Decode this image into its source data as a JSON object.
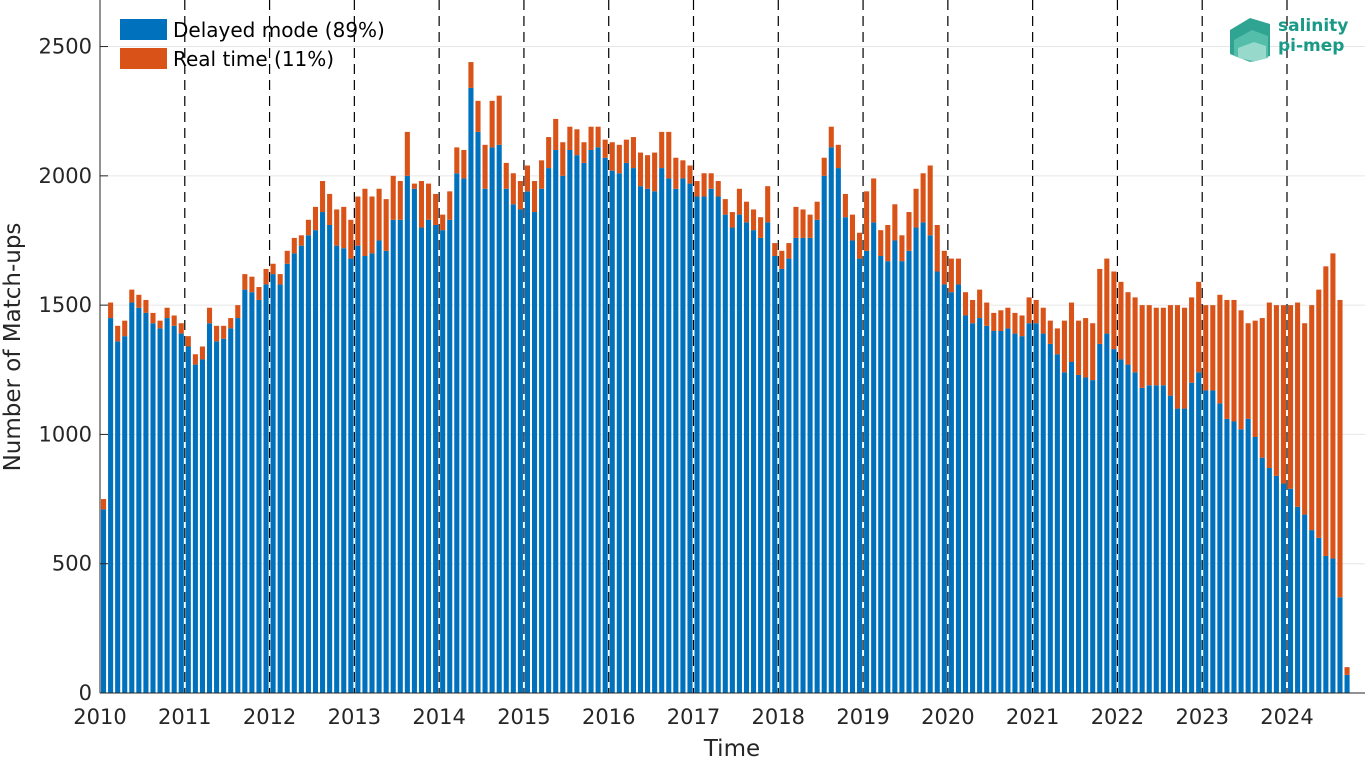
{
  "chart_data": {
    "type": "bar",
    "stacked": true,
    "xlabel": "Time",
    "ylabel": "Number of Match-ups",
    "ylim": [
      0,
      2680
    ],
    "xlim": [
      2010.0,
      2024.92
    ],
    "y_ticks": [
      "0",
      "500",
      "1000",
      "1500",
      "2000",
      "2500"
    ],
    "x_ticks": [
      "2010",
      "2011",
      "2012",
      "2013",
      "2014",
      "2015",
      "2016",
      "2017",
      "2018",
      "2019",
      "2020",
      "2021",
      "2022",
      "2023",
      "2024"
    ],
    "year_dividers": true,
    "grid": "horizontal",
    "legend_position": "top-left",
    "start_month": "2010-01",
    "end_month": "2024-11",
    "colors": {
      "delayed": "#0072BD",
      "realtime": "#D95319",
      "divider": "#000000",
      "logo": "#1a9a86"
    },
    "series": [
      {
        "name": "Delayed mode (89%)",
        "values": [
          710,
          1450,
          1360,
          1380,
          1510,
          1490,
          1470,
          1430,
          1410,
          1450,
          1420,
          1390,
          1340,
          1270,
          1290,
          1430,
          1360,
          1370,
          1410,
          1450,
          1560,
          1550,
          1520,
          1580,
          1620,
          1580,
          1660,
          1700,
          1730,
          1770,
          1790,
          1860,
          1810,
          1730,
          1720,
          1680,
          1730,
          1690,
          1700,
          1750,
          1710,
          1830,
          1830,
          2000,
          1950,
          1800,
          1830,
          1810,
          1790,
          1830,
          2010,
          1990,
          2340,
          2170,
          1950,
          2110,
          2120,
          1950,
          1890,
          1870,
          1940,
          1860,
          1950,
          2030,
          2100,
          2000,
          2100,
          2080,
          2050,
          2100,
          2110,
          2070,
          2020,
          2010,
          2050,
          2030,
          1960,
          1950,
          1940,
          2030,
          1990,
          1950,
          1990,
          1970,
          1920,
          1920,
          1950,
          1920,
          1850,
          1800,
          1850,
          1820,
          1790,
          1760,
          1820,
          1690,
          1640,
          1680,
          1760,
          1760,
          1760,
          1830,
          2000,
          2110,
          2030,
          1840,
          1750,
          1680,
          1710,
          1820,
          1690,
          1670,
          1750,
          1670,
          1710,
          1800,
          1820,
          1770,
          1630,
          1580,
          1550,
          1580,
          1460,
          1430,
          1450,
          1420,
          1400,
          1400,
          1410,
          1390,
          1380,
          1430,
          1430,
          1390,
          1350,
          1310,
          1240,
          1280,
          1230,
          1220,
          1210,
          1350,
          1390,
          1330,
          1290,
          1270,
          1240,
          1180,
          1190,
          1190,
          1190,
          1150,
          1100,
          1100,
          1200,
          1240,
          1170,
          1170,
          1120,
          1060,
          1050,
          1020,
          1060,
          990,
          910,
          870,
          840,
          810,
          790,
          720,
          690,
          630,
          600,
          530,
          520,
          370,
          70
        ]
      },
      {
        "name": "Real time (11%)",
        "values": [
          40,
          60,
          60,
          60,
          50,
          50,
          50,
          40,
          30,
          40,
          40,
          40,
          40,
          40,
          50,
          60,
          60,
          50,
          40,
          50,
          60,
          60,
          50,
          60,
          40,
          40,
          50,
          60,
          40,
          60,
          90,
          120,
          120,
          140,
          160,
          150,
          190,
          260,
          220,
          200,
          200,
          170,
          150,
          170,
          20,
          180,
          140,
          120,
          60,
          110,
          100,
          110,
          100,
          120,
          170,
          180,
          190,
          100,
          120,
          110,
          100,
          120,
          110,
          120,
          120,
          130,
          90,
          100,
          80,
          90,
          80,
          70,
          110,
          110,
          90,
          120,
          130,
          130,
          150,
          140,
          180,
          120,
          70,
          70,
          60,
          90,
          60,
          60,
          60,
          60,
          100,
          80,
          80,
          80,
          140,
          50,
          70,
          60,
          120,
          110,
          90,
          70,
          70,
          80,
          90,
          90,
          100,
          100,
          230,
          170,
          100,
          140,
          140,
          100,
          150,
          150,
          190,
          270,
          180,
          130,
          130,
          100,
          90,
          90,
          110,
          90,
          70,
          80,
          80,
          80,
          80,
          100,
          90,
          100,
          90,
          100,
          200,
          230,
          210,
          230,
          220,
          290,
          290,
          300,
          300,
          280,
          290,
          320,
          310,
          300,
          300,
          350,
          400,
          390,
          330,
          350,
          330,
          330,
          420,
          460,
          470,
          460,
          370,
          450,
          540,
          640,
          660,
          690,
          710,
          790,
          740,
          870,
          960,
          1120,
          1180,
          1150,
          30
        ]
      }
    ]
  },
  "logo": {
    "line1": "salinity",
    "line2": "pi-mep"
  }
}
